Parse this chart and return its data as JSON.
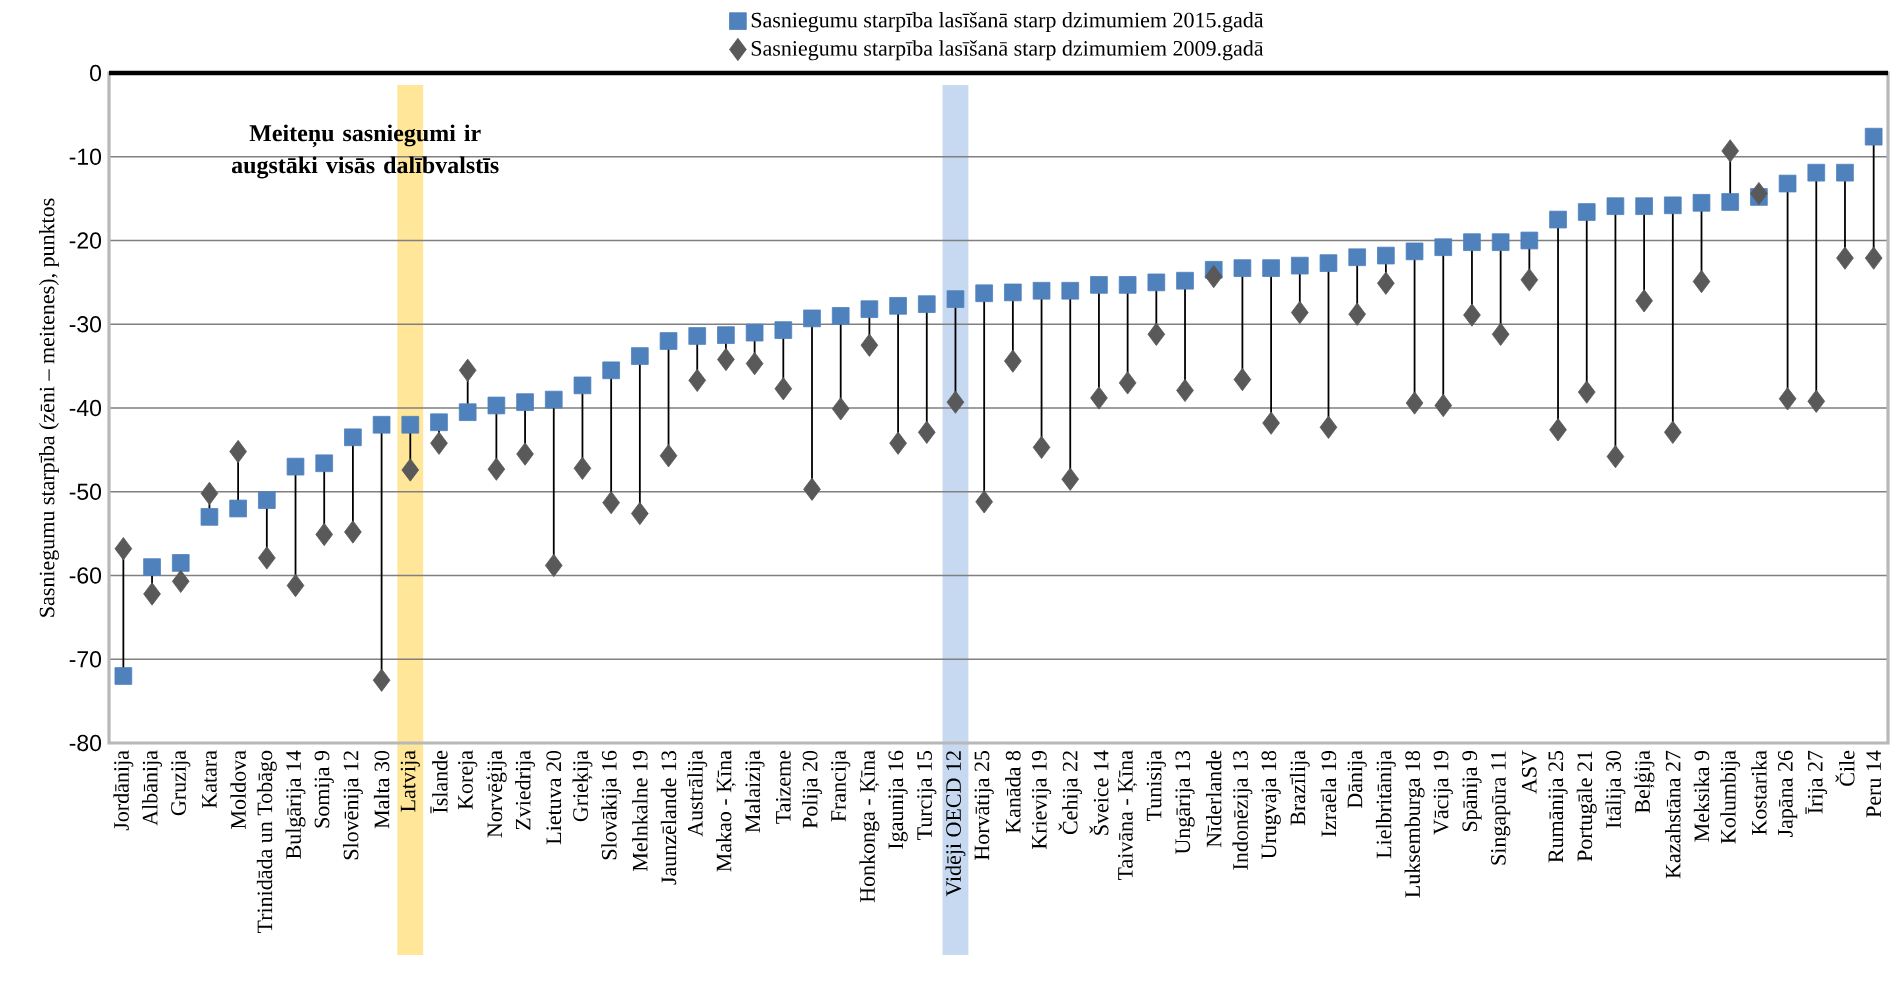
{
  "chart_data": {
    "type": "scatter",
    "ylabel": "Sasniegumu starpība (zēni – meitenes), punktos",
    "annotations": [
      "Meiteņu sasniegumi ir augstāki visās dalībvalstīs"
    ],
    "categories": [
      "Jordānija",
      "Albānija",
      "Gruzija",
      "Katara",
      "Moldova",
      "Trinidāda un Tobāgo",
      "Bulgārija 14",
      "Somija 9",
      "Slovēnija 12",
      "Malta 30",
      "Latvija",
      "Īslande",
      "Koreja",
      "Norvēģija",
      "Zviedrija",
      "Lietuva 20",
      "Grieķija",
      "Slovākija 16",
      "Melnkalne 19",
      "Jaunzēlande 13",
      "Austrālija",
      "Makao - Ķīna",
      "Malaizija",
      "Taizeme",
      "Polija 20",
      "Francija",
      "Honkonga - Ķīna",
      "Igaunija 16",
      "Turcija 15",
      "Vidēji OECD 12",
      "Horvātija 25",
      "Kanāda 8",
      "Krievija 19",
      "Čehija 22",
      "Šveice 14",
      "Taivāna - Ķīna",
      "Tunisija",
      "Ungārija 13",
      "Nīderlande",
      "Indonēzija 13",
      "Urugvaja 18",
      "Brazīlija",
      "Izraēla 19",
      "Dānija",
      "Lielbritānija",
      "Luksemburga 18",
      "Vācija 19",
      "Spānija 9",
      "Singapūra 11",
      "ASV",
      "Rumānija 25",
      "Portugāle 21",
      "Itālija 30",
      "Beļģija",
      "Kazahstāna 27",
      "Meksika 9",
      "Kolumbija",
      "Kostarika",
      "Japāna 26",
      "Īrija 27",
      "Čile",
      "Peru 14"
    ],
    "series": [
      {
        "name": "Sasniegumu starpība lasīšanā starp dzimumiem 2015.gadā",
        "color": "#4f81bd",
        "marker": "square",
        "values": [
          -72,
          -59,
          -58.5,
          -53,
          -52,
          -51,
          -47,
          -46.6,
          -43.5,
          -42,
          -42,
          -41.7,
          -40.5,
          -39.7,
          -39.3,
          -39,
          -37.3,
          -35.5,
          -33.8,
          -32,
          -31.4,
          -31.3,
          -31,
          -30.7,
          -29.3,
          -29,
          -28.2,
          -27.8,
          -27.6,
          -27,
          -26.3,
          -26.2,
          -26,
          -26,
          -25.3,
          -25.3,
          -25,
          -24.8,
          -23.5,
          -23.3,
          -23.3,
          -23,
          -22.7,
          -22,
          -21.8,
          -21.3,
          -20.8,
          -20.2,
          -20.2,
          -20,
          -17.5,
          -16.6,
          -15.9,
          -15.9,
          -15.8,
          -15.5,
          -15.4,
          -14.8,
          -13.2,
          -11.9,
          -11.9,
          -7.6
        ]
      },
      {
        "name": "Sasniegumu starpība lasīšanā starp dzimumiem 2009.gadā",
        "color": "#595959",
        "marker": "diamond",
        "values": [
          -56.8,
          -62.2,
          -60.7,
          -50.2,
          -45.2,
          -57.9,
          -61.2,
          -55.1,
          -54.8,
          -72.5,
          -47.4,
          -44.2,
          -35.5,
          -47.3,
          -45.5,
          -58.8,
          -47.2,
          -51.3,
          -52.6,
          -45.7,
          -36.7,
          -34.2,
          -34.7,
          -37.7,
          -49.7,
          -40.1,
          -32.5,
          -44.2,
          -42.9,
          -39.3,
          -51.2,
          -34.4,
          -44.7,
          -48.5,
          -38.8,
          -37,
          -31.2,
          -37.9,
          -24.3,
          -36.6,
          -41.8,
          -28.6,
          -42.3,
          -28.8,
          -25.1,
          -39.4,
          -39.7,
          -28.9,
          -31.2,
          -24.7,
          -42.6,
          -38.1,
          -45.8,
          -27.2,
          -42.9,
          -24.9,
          -9.3,
          -14.4,
          -38.9,
          -39.2,
          -22.1,
          -22.1
        ]
      }
    ],
    "ylim": [
      -80,
      0
    ],
    "yticks": [
      0,
      -10,
      -20,
      -30,
      -40,
      -50,
      -60,
      -70,
      -80
    ],
    "grid": "y",
    "legend": "top",
    "bands": [
      {
        "axis": "x",
        "from": "Latvija",
        "to": "Latvija",
        "color": "#ffe699"
      },
      {
        "axis": "x",
        "from": "Vidēji OECD 12",
        "to": "Vidēji OECD 12",
        "color": "#c6d9f1"
      }
    ]
  }
}
